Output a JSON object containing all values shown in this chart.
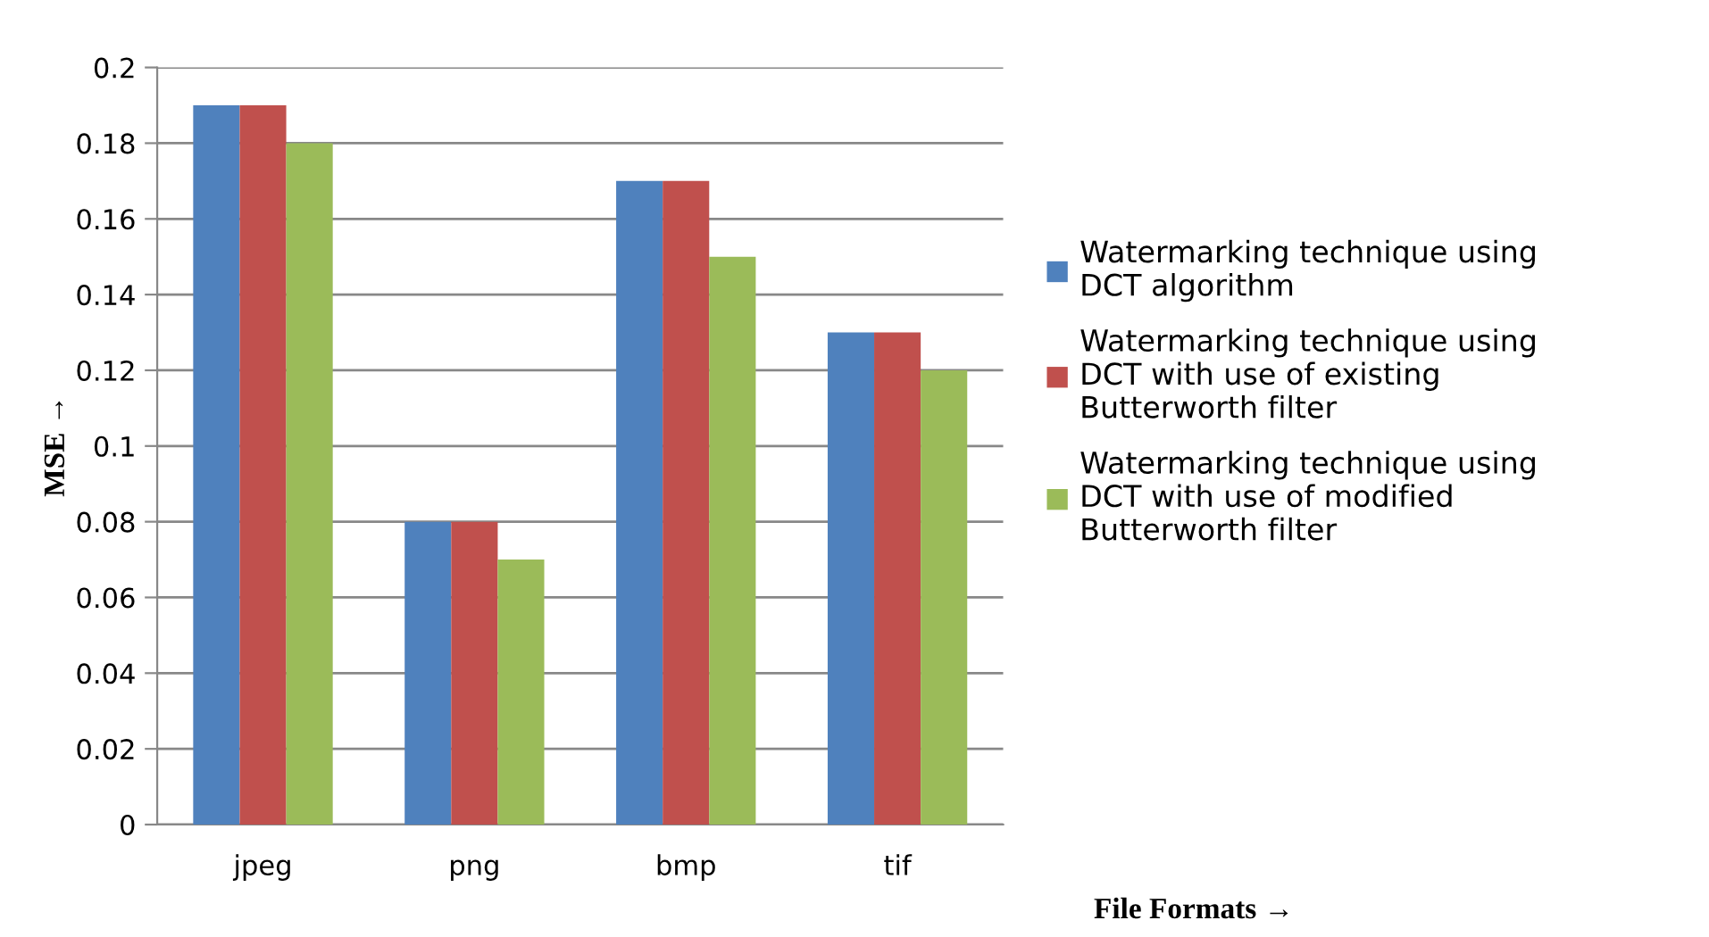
{
  "chart_data": {
    "type": "bar",
    "xlabel": "File Formats →",
    "ylabel": "MSE →",
    "categories": [
      "jpeg",
      "png",
      "bmp",
      "tif"
    ],
    "series": [
      {
        "name": "Watermarking technique using\nDCT algorithm",
        "color": "#4f81bd",
        "values": [
          0.19,
          0.08,
          0.17,
          0.13
        ]
      },
      {
        "name": "Watermarking technique using\nDCT with use of existing\nButterworth filter",
        "color": "#c0504d",
        "values": [
          0.19,
          0.08,
          0.17,
          0.13
        ]
      },
      {
        "name": "Watermarking technique using\nDCT with use of modified\nButterworth filter",
        "color": "#9bbb59",
        "values": [
          0.18,
          0.07,
          0.15,
          0.12
        ]
      }
    ],
    "ylim": [
      0,
      0.2
    ],
    "yticks": [
      0,
      0.02,
      0.04,
      0.06,
      0.08,
      {
        "value": 0.1,
        "label": "0.1"
      },
      0.12,
      0.14,
      0.16,
      0.18,
      {
        "value": 0.2,
        "label": "0.2"
      }
    ],
    "grid": "y",
    "legend": "right"
  }
}
